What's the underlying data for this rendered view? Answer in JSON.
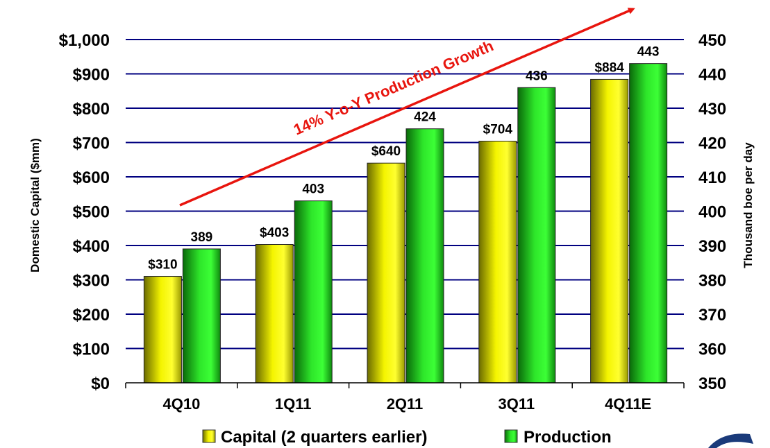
{
  "chart_data": {
    "type": "bar",
    "categories": [
      "4Q10",
      "1Q11",
      "2Q11",
      "3Q11",
      "4Q11E"
    ],
    "series": [
      {
        "name": "Capital (2 quarters earlier)",
        "axis": "left",
        "values": [
          310,
          403,
          640,
          704,
          884
        ],
        "labels": [
          "$310",
          "$403",
          "$640",
          "$704",
          "$884"
        ],
        "color": "#e6e600"
      },
      {
        "name": "Production",
        "axis": "right",
        "values": [
          389,
          403,
          424,
          436,
          443
        ],
        "labels": [
          "389",
          "403",
          "424",
          "436",
          "443"
        ],
        "color": "#22c41e"
      }
    ],
    "ylabel": "Domestic Capital ($mm)",
    "y2label": "Thousand boe per day",
    "ylim": [
      0,
      1000
    ],
    "y2lim": [
      350,
      450
    ],
    "yticks": [
      "$0",
      "$100",
      "$200",
      "$300",
      "$400",
      "$500",
      "$600",
      "$700",
      "$800",
      "$900",
      "$1,000"
    ],
    "y2ticks": [
      "350",
      "360",
      "370",
      "380",
      "390",
      "400",
      "410",
      "420",
      "430",
      "440",
      "450"
    ],
    "grid": true,
    "legend_position": "bottom",
    "annotation": {
      "text": "14% Y-o-Y Production Growth",
      "color": "#e8150e"
    },
    "gridline_color": "#000080"
  }
}
